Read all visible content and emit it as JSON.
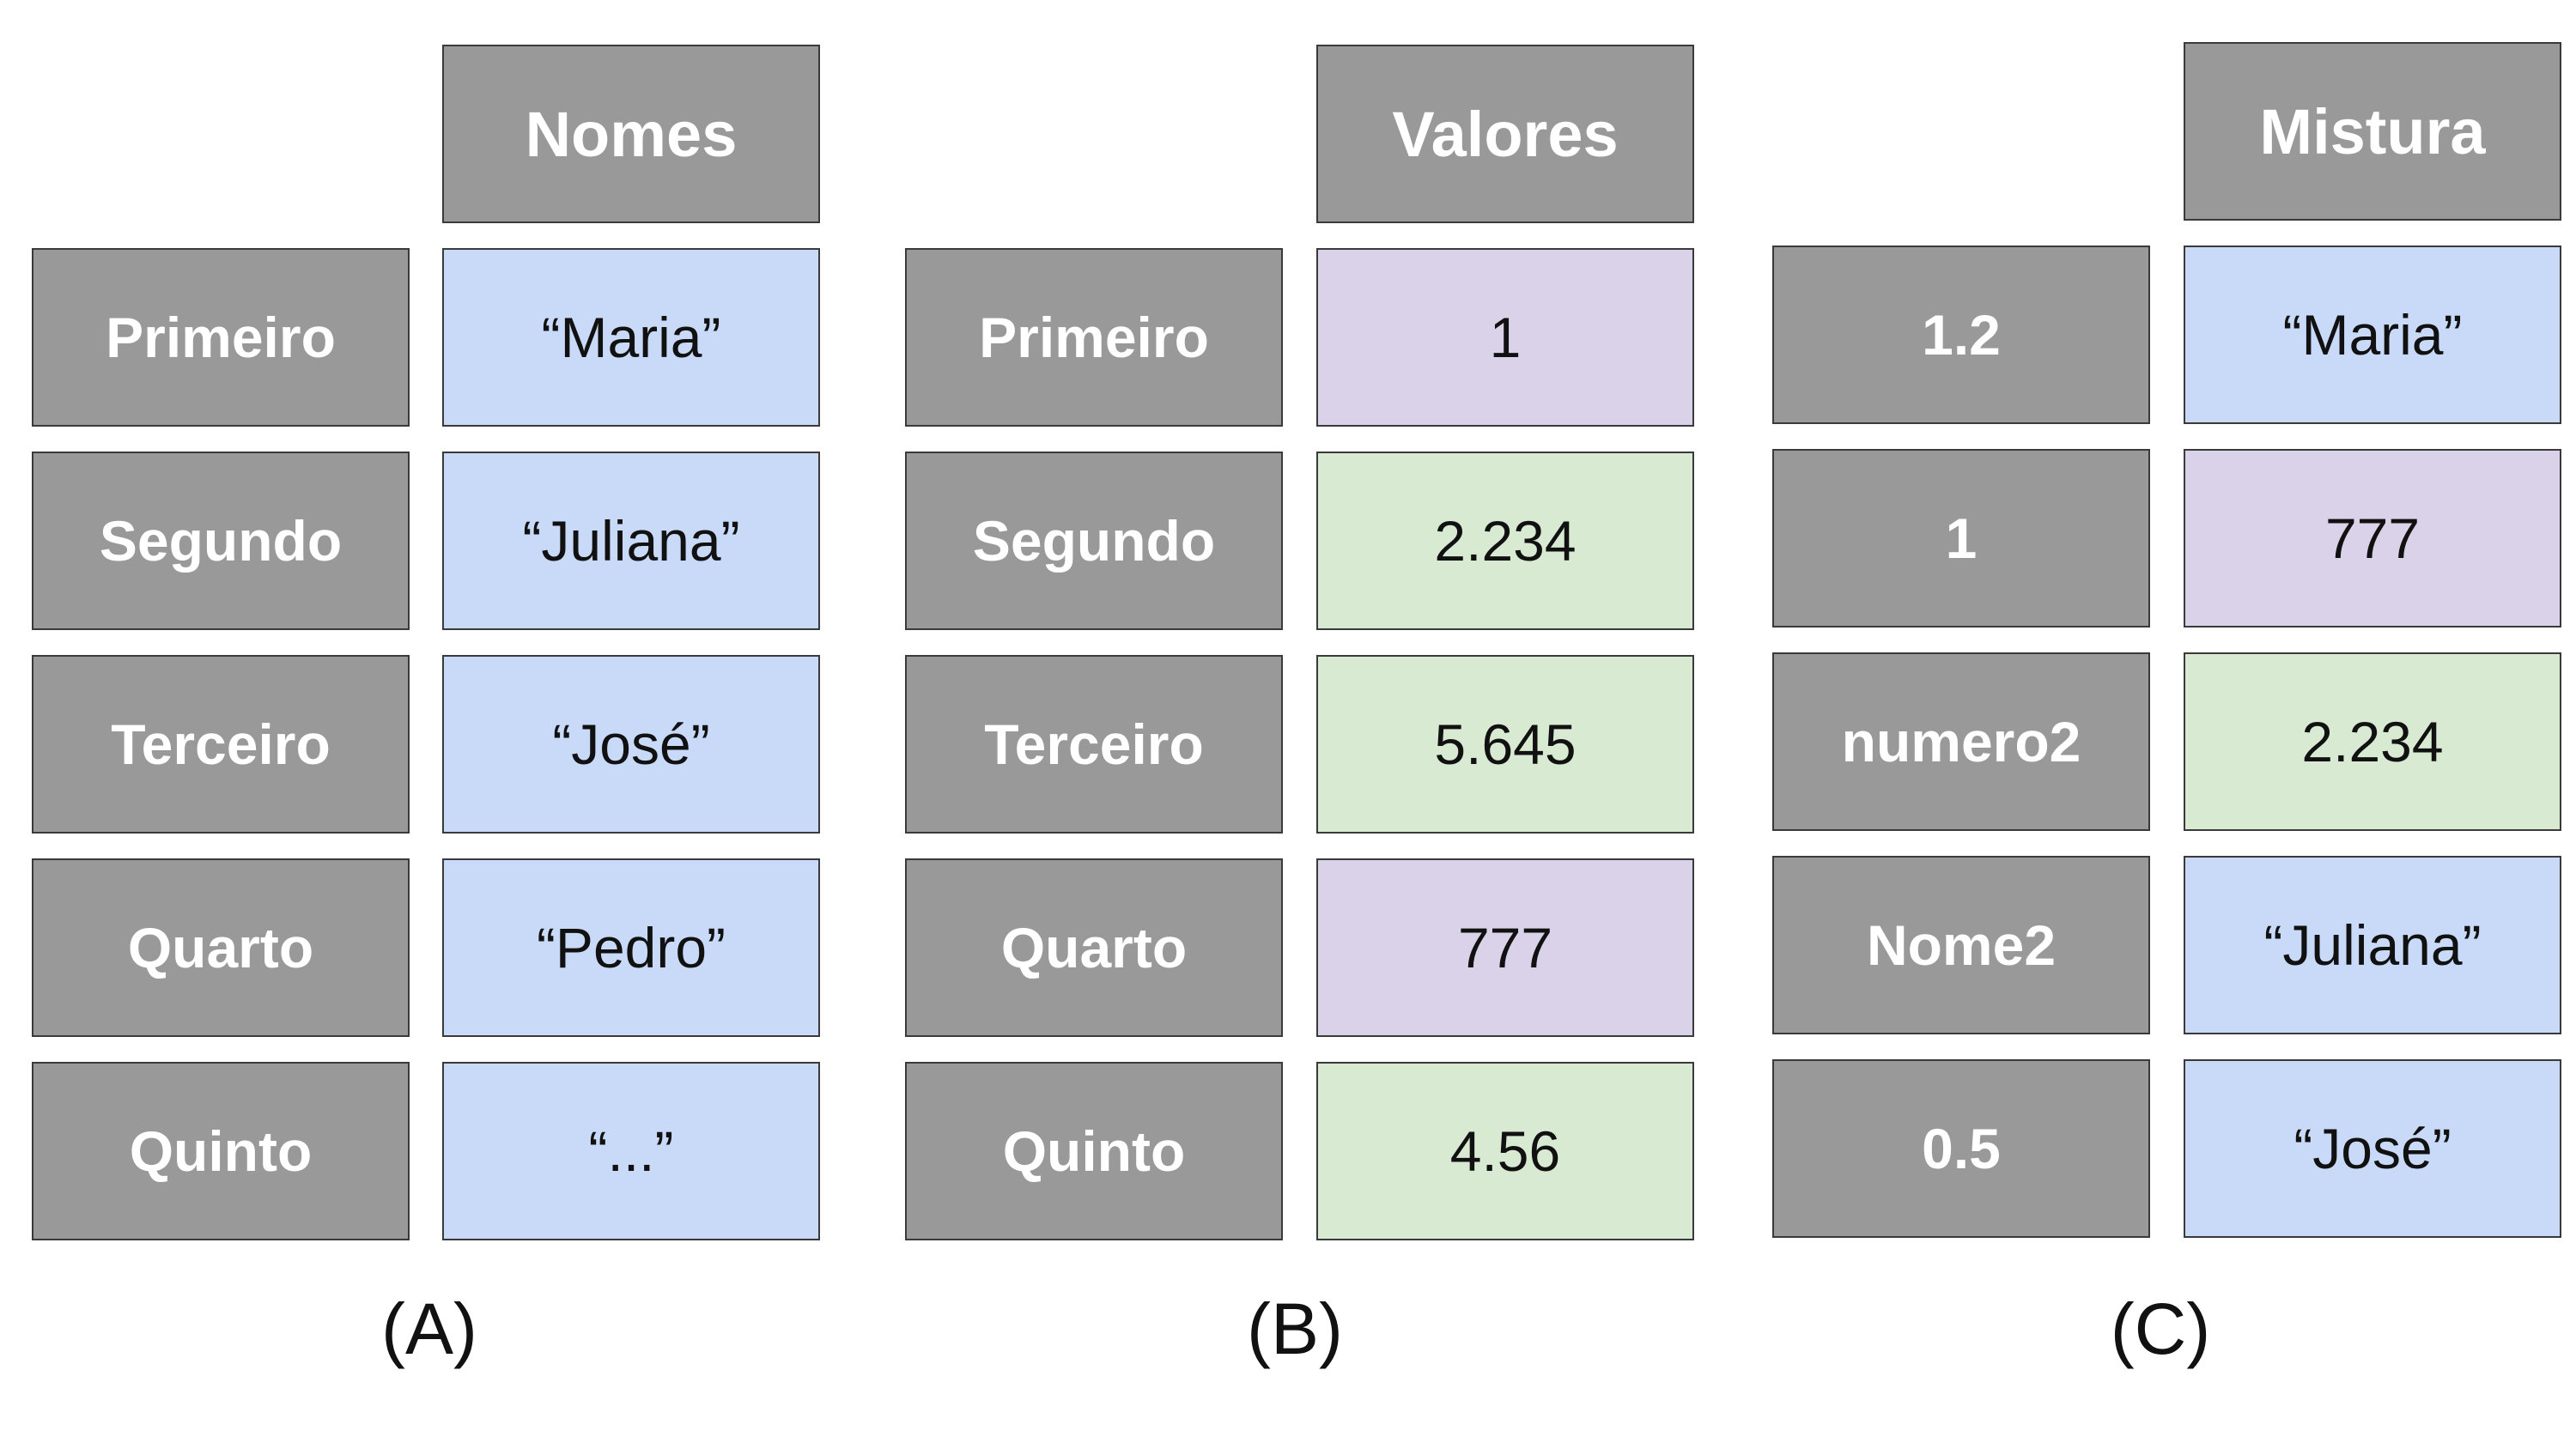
{
  "colors": {
    "index_cell": "#999999",
    "header_cell": "#999999",
    "string_value": "#c9daf8",
    "integer_value": "#d9d2e9",
    "float_value": "#d9ead3",
    "border": "#3a3a3a"
  },
  "panels": [
    {
      "caption": "(A)",
      "header": "Nomes",
      "rows": [
        {
          "index": "Primeiro",
          "value": "“Maria”",
          "kind": "str"
        },
        {
          "index": "Segundo",
          "value": "“Juliana”",
          "kind": "str"
        },
        {
          "index": "Terceiro",
          "value": "“José”",
          "kind": "str"
        },
        {
          "index": "Quarto",
          "value": "“Pedro”",
          "kind": "str"
        },
        {
          "index": "Quinto",
          "value": "“...”",
          "kind": "str"
        }
      ]
    },
    {
      "caption": "(B)",
      "header": "Valores",
      "rows": [
        {
          "index": "Primeiro",
          "value": "1",
          "kind": "int"
        },
        {
          "index": "Segundo",
          "value": "2.234",
          "kind": "flt"
        },
        {
          "index": "Terceiro",
          "value": "5.645",
          "kind": "flt"
        },
        {
          "index": "Quarto",
          "value": "777",
          "kind": "int"
        },
        {
          "index": "Quinto",
          "value": "4.56",
          "kind": "flt"
        }
      ]
    },
    {
      "caption": "(C)",
      "header": "Mistura",
      "rows": [
        {
          "index": "1.2",
          "value": "“Maria”",
          "kind": "str"
        },
        {
          "index": "1",
          "value": "777",
          "kind": "int"
        },
        {
          "index": "numero2",
          "value": "2.234",
          "kind": "flt"
        },
        {
          "index": "Nome2",
          "value": "“Juliana”",
          "kind": "str"
        },
        {
          "index": "0.5",
          "value": "“José”",
          "kind": "str"
        }
      ]
    }
  ]
}
